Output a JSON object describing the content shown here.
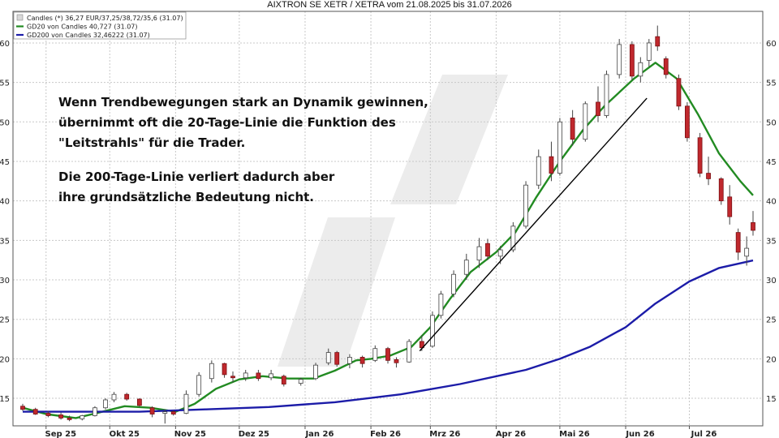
{
  "chart_data": {
    "type": "candlestick",
    "title": "AIXTRON SE XETR / XETRA vom 21.08.2025 bis 31.07.2026",
    "ylim": [
      11,
      64
    ],
    "y_ticks": [
      15,
      20,
      25,
      30,
      35,
      40,
      45,
      50,
      55,
      60
    ],
    "x_range": [
      "2025-08-21",
      "2026-07-31"
    ],
    "x_ticks": [
      {
        "label": "Sep 25",
        "date": "2025-09-01"
      },
      {
        "label": "Okt 25",
        "date": "2025-10-01"
      },
      {
        "label": "Nov 25",
        "date": "2025-11-01"
      },
      {
        "label": "Dez 25",
        "date": "2025-12-01"
      },
      {
        "label": "Jan 26",
        "date": "2026-01-01"
      },
      {
        "label": "Feb 26",
        "date": "2026-02-01"
      },
      {
        "label": "Mrz 26",
        "date": "2026-03-01"
      },
      {
        "label": "Apr 26",
        "date": "2026-04-01"
      },
      {
        "label": "Mai 26",
        "date": "2026-05-01"
      },
      {
        "label": "Jun 26",
        "date": "2026-06-01"
      },
      {
        "label": "Jul 26",
        "date": "2026-07-01"
      }
    ],
    "grid": true,
    "legend_position": "top-left",
    "legend": [
      {
        "label": "Candles (*) 36,27 EUR/37,25/38,72/35,6 (31.07)",
        "color": "#d9d9d9",
        "kind": "box"
      },
      {
        "label": "GD20 von Candles 40,727 (31.07)",
        "color": "#228b22",
        "kind": "line"
      },
      {
        "label": "GD200 von Candles 32,46222 (31.07)",
        "color": "#1c1ca8",
        "kind": "line"
      }
    ],
    "colors": {
      "up": "#ffffff",
      "down": "#c0282d",
      "gd20": "#228b22",
      "gd200": "#1c1ca8"
    },
    "series": [
      {
        "name": "GD20 von Candles",
        "points": [
          [
            "2025-08-21",
            13.8
          ],
          [
            "2025-09-01",
            13.0
          ],
          [
            "2025-09-15",
            12.5
          ],
          [
            "2025-09-26",
            13.2
          ],
          [
            "2025-10-08",
            14.0
          ],
          [
            "2025-10-20",
            13.8
          ],
          [
            "2025-11-01",
            13.3
          ],
          [
            "2025-11-10",
            14.3
          ],
          [
            "2025-11-20",
            16.2
          ],
          [
            "2025-12-01",
            17.4
          ],
          [
            "2025-12-12",
            17.8
          ],
          [
            "2025-12-24",
            17.5
          ],
          [
            "2026-01-05",
            17.5
          ],
          [
            "2026-01-15",
            18.5
          ],
          [
            "2026-01-25",
            19.8
          ],
          [
            "2026-02-01",
            20.0
          ],
          [
            "2026-02-10",
            20.4
          ],
          [
            "2026-02-20",
            21.5
          ],
          [
            "2026-03-01",
            24.0
          ],
          [
            "2026-03-10",
            27.5
          ],
          [
            "2026-03-20",
            31.0
          ],
          [
            "2026-04-01",
            33.5
          ],
          [
            "2026-04-10",
            36.0
          ],
          [
            "2026-04-20",
            40.5
          ],
          [
            "2026-05-01",
            45.0
          ],
          [
            "2026-05-12",
            49.0
          ],
          [
            "2026-05-22",
            52.0
          ],
          [
            "2026-06-05",
            55.5
          ],
          [
            "2026-06-15",
            57.5
          ],
          [
            "2026-06-25",
            55.5
          ],
          [
            "2026-07-05",
            51.0
          ],
          [
            "2026-07-15",
            46.0
          ],
          [
            "2026-07-25",
            42.5
          ],
          [
            "2026-07-31",
            40.7
          ]
        ]
      },
      {
        "name": "GD200 von Candles",
        "points": [
          [
            "2025-08-21",
            13.3
          ],
          [
            "2025-09-15",
            13.3
          ],
          [
            "2025-10-15",
            13.3
          ],
          [
            "2025-11-15",
            13.6
          ],
          [
            "2025-12-15",
            13.9
          ],
          [
            "2026-01-15",
            14.5
          ],
          [
            "2026-02-15",
            15.5
          ],
          [
            "2026-03-15",
            16.8
          ],
          [
            "2026-04-15",
            18.6
          ],
          [
            "2026-05-01",
            20.0
          ],
          [
            "2026-05-15",
            21.5
          ],
          [
            "2026-06-01",
            24.0
          ],
          [
            "2026-06-15",
            27.0
          ],
          [
            "2026-07-01",
            29.8
          ],
          [
            "2026-07-15",
            31.5
          ],
          [
            "2026-07-31",
            32.46
          ]
        ]
      }
    ],
    "trendline": {
      "from": [
        "2026-02-24",
        21.0
      ],
      "to": [
        "2026-06-11",
        53.0
      ],
      "color": "#000000"
    },
    "candles": [
      {
        "date": "2025-08-21",
        "o": 14.0,
        "h": 14.3,
        "l": 13.4,
        "c": 13.6
      },
      {
        "date": "2025-08-27",
        "o": 13.6,
        "h": 13.8,
        "l": 12.9,
        "c": 13.0
      },
      {
        "date": "2025-09-02",
        "o": 13.1,
        "h": 13.4,
        "l": 12.6,
        "c": 12.8
      },
      {
        "date": "2025-09-08",
        "o": 12.9,
        "h": 13.2,
        "l": 12.3,
        "c": 12.5
      },
      {
        "date": "2025-09-12",
        "o": 12.5,
        "h": 12.8,
        "l": 12.1,
        "c": 12.3
      },
      {
        "date": "2025-09-18",
        "o": 12.4,
        "h": 12.9,
        "l": 12.2,
        "c": 12.8
      },
      {
        "date": "2025-09-24",
        "o": 12.8,
        "h": 14.0,
        "l": 12.7,
        "c": 13.8
      },
      {
        "date": "2025-09-29",
        "o": 13.8,
        "h": 15.0,
        "l": 13.6,
        "c": 14.8
      },
      {
        "date": "2025-10-03",
        "o": 14.8,
        "h": 15.8,
        "l": 14.5,
        "c": 15.5
      },
      {
        "date": "2025-10-09",
        "o": 15.5,
        "h": 15.7,
        "l": 14.7,
        "c": 14.9
      },
      {
        "date": "2025-10-15",
        "o": 14.9,
        "h": 15.0,
        "l": 13.9,
        "c": 14.1
      },
      {
        "date": "2025-10-21",
        "o": 13.8,
        "h": 14.0,
        "l": 12.6,
        "c": 13.0
      },
      {
        "date": "2025-10-27",
        "o": 13.1,
        "h": 13.6,
        "l": 11.8,
        "c": 13.3
      },
      {
        "date": "2025-10-31",
        "o": 13.3,
        "h": 13.5,
        "l": 12.8,
        "c": 13.0
      },
      {
        "date": "2025-11-06",
        "o": 13.1,
        "h": 16.0,
        "l": 13.0,
        "c": 15.5
      },
      {
        "date": "2025-11-12",
        "o": 15.5,
        "h": 18.3,
        "l": 15.2,
        "c": 17.9
      },
      {
        "date": "2025-11-18",
        "o": 17.5,
        "h": 19.8,
        "l": 17.0,
        "c": 19.4
      },
      {
        "date": "2025-11-24",
        "o": 19.4,
        "h": 19.5,
        "l": 17.6,
        "c": 18.0
      },
      {
        "date": "2025-11-28",
        "o": 17.8,
        "h": 18.4,
        "l": 17.0,
        "c": 17.6
      },
      {
        "date": "2025-12-04",
        "o": 17.6,
        "h": 18.6,
        "l": 17.2,
        "c": 18.2
      },
      {
        "date": "2025-12-10",
        "o": 18.2,
        "h": 18.6,
        "l": 17.2,
        "c": 17.5
      },
      {
        "date": "2025-12-16",
        "o": 17.6,
        "h": 18.6,
        "l": 17.3,
        "c": 18.1
      },
      {
        "date": "2025-12-22",
        "o": 17.8,
        "h": 18.0,
        "l": 16.5,
        "c": 16.8
      },
      {
        "date": "2025-12-30",
        "o": 16.9,
        "h": 17.6,
        "l": 16.6,
        "c": 17.4
      },
      {
        "date": "2026-01-06",
        "o": 17.5,
        "h": 19.5,
        "l": 17.3,
        "c": 19.2
      },
      {
        "date": "2026-01-12",
        "o": 19.5,
        "h": 21.3,
        "l": 19.2,
        "c": 20.8
      },
      {
        "date": "2026-01-16",
        "o": 20.8,
        "h": 21.0,
        "l": 19.0,
        "c": 19.3
      },
      {
        "date": "2026-01-22",
        "o": 19.4,
        "h": 20.6,
        "l": 18.8,
        "c": 20.2
      },
      {
        "date": "2026-01-28",
        "o": 20.2,
        "h": 20.4,
        "l": 18.9,
        "c": 19.4
      },
      {
        "date": "2026-02-03",
        "o": 19.8,
        "h": 21.7,
        "l": 19.6,
        "c": 21.3
      },
      {
        "date": "2026-02-09",
        "o": 21.3,
        "h": 21.5,
        "l": 19.4,
        "c": 19.8
      },
      {
        "date": "2026-02-13",
        "o": 19.9,
        "h": 20.2,
        "l": 18.9,
        "c": 19.5
      },
      {
        "date": "2026-02-19",
        "o": 19.6,
        "h": 22.5,
        "l": 19.5,
        "c": 22.2
      },
      {
        "date": "2026-02-25",
        "o": 22.2,
        "h": 23.0,
        "l": 21.0,
        "c": 21.4
      },
      {
        "date": "2026-03-02",
        "o": 21.6,
        "h": 26.0,
        "l": 21.4,
        "c": 25.5
      },
      {
        "date": "2026-03-06",
        "o": 25.5,
        "h": 28.6,
        "l": 25.1,
        "c": 28.2
      },
      {
        "date": "2026-03-12",
        "o": 28.2,
        "h": 31.2,
        "l": 27.8,
        "c": 30.7
      },
      {
        "date": "2026-03-18",
        "o": 30.7,
        "h": 33.3,
        "l": 30.0,
        "c": 32.5
      },
      {
        "date": "2026-03-24",
        "o": 32.5,
        "h": 35.3,
        "l": 31.5,
        "c": 34.2
      },
      {
        "date": "2026-03-28",
        "o": 34.6,
        "h": 35.2,
        "l": 32.5,
        "c": 33.0
      },
      {
        "date": "2026-04-03",
        "o": 33.0,
        "h": 34.3,
        "l": 32.0,
        "c": 33.8
      },
      {
        "date": "2026-04-09",
        "o": 33.8,
        "h": 37.3,
        "l": 33.5,
        "c": 36.8
      },
      {
        "date": "2026-04-15",
        "o": 36.8,
        "h": 42.5,
        "l": 36.5,
        "c": 42.0
      },
      {
        "date": "2026-04-21",
        "o": 42.0,
        "h": 46.5,
        "l": 41.5,
        "c": 45.6
      },
      {
        "date": "2026-04-27",
        "o": 45.6,
        "h": 47.5,
        "l": 42.5,
        "c": 43.5
      },
      {
        "date": "2026-05-01",
        "o": 43.5,
        "h": 50.5,
        "l": 43.2,
        "c": 50.0
      },
      {
        "date": "2026-05-07",
        "o": 50.5,
        "h": 51.5,
        "l": 47.0,
        "c": 47.8
      },
      {
        "date": "2026-05-13",
        "o": 47.8,
        "h": 52.6,
        "l": 47.5,
        "c": 52.3
      },
      {
        "date": "2026-05-19",
        "o": 52.5,
        "h": 54.5,
        "l": 50.0,
        "c": 50.8
      },
      {
        "date": "2026-05-23",
        "o": 50.8,
        "h": 56.5,
        "l": 50.5,
        "c": 56.0
      },
      {
        "date": "2026-05-29",
        "o": 56.0,
        "h": 60.5,
        "l": 55.5,
        "c": 59.8
      },
      {
        "date": "2026-06-04",
        "o": 59.8,
        "h": 60.2,
        "l": 55.3,
        "c": 55.8
      },
      {
        "date": "2026-06-08",
        "o": 55.8,
        "h": 58.2,
        "l": 55.0,
        "c": 57.5
      },
      {
        "date": "2026-06-12",
        "o": 57.8,
        "h": 60.5,
        "l": 57.0,
        "c": 60.0
      },
      {
        "date": "2026-06-16",
        "o": 60.8,
        "h": 62.2,
        "l": 59.0,
        "c": 59.6
      },
      {
        "date": "2026-06-20",
        "o": 58.0,
        "h": 58.3,
        "l": 55.5,
        "c": 56.0
      },
      {
        "date": "2026-06-26",
        "o": 55.5,
        "h": 56.0,
        "l": 51.5,
        "c": 52.0
      },
      {
        "date": "2026-06-30",
        "o": 52.0,
        "h": 52.5,
        "l": 47.5,
        "c": 48.0
      },
      {
        "date": "2026-07-06",
        "o": 48.0,
        "h": 48.6,
        "l": 43.0,
        "c": 43.5
      },
      {
        "date": "2026-07-10",
        "o": 43.5,
        "h": 45.6,
        "l": 42.0,
        "c": 42.8
      },
      {
        "date": "2026-07-16",
        "o": 42.8,
        "h": 43.0,
        "l": 39.5,
        "c": 40.0
      },
      {
        "date": "2026-07-20",
        "o": 40.5,
        "h": 42.0,
        "l": 37.0,
        "c": 38.0
      },
      {
        "date": "2026-07-24",
        "o": 36.0,
        "h": 36.5,
        "l": 32.5,
        "c": 33.5
      },
      {
        "date": "2026-07-28",
        "o": 33.0,
        "h": 35.5,
        "l": 31.8,
        "c": 34.0
      },
      {
        "date": "2026-07-31",
        "o": 37.25,
        "h": 38.72,
        "l": 35.6,
        "c": 36.27
      }
    ],
    "annotations": [
      {
        "lines": [
          "Wenn Trendbewegungen stark an Dynamik gewinnen,",
          "übernimmt oft die 20-Tage-Linie die Funktion des",
          "\"Leitstrahls\" für die Trader."
        ]
      },
      {
        "lines": [
          "Die 200-Tage-Linie verliert dadurch aber",
          "ihre grundsätzliche Bedeutung nicht."
        ]
      }
    ]
  }
}
